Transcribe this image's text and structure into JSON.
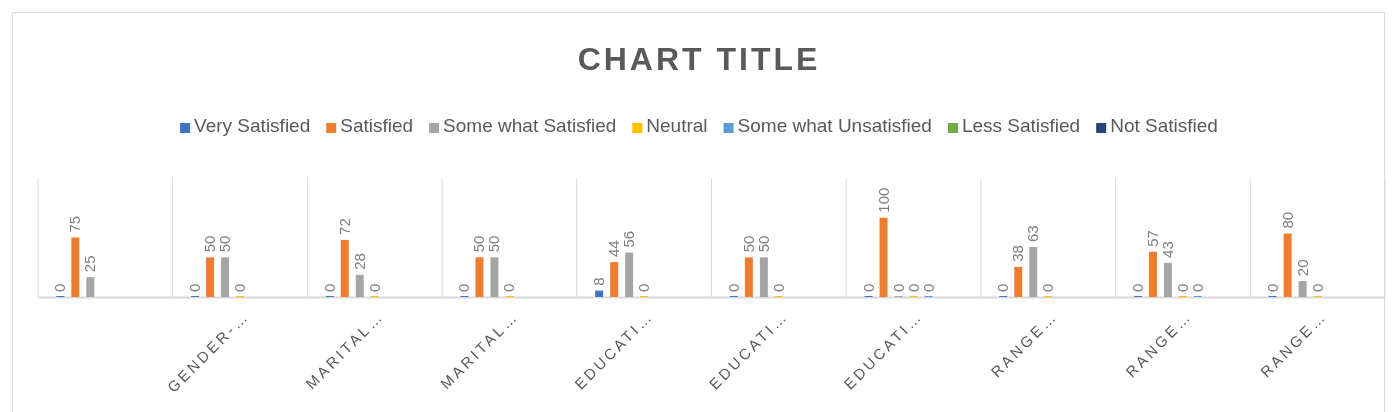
{
  "chart_data": {
    "type": "bar",
    "title": "CHART TITLE",
    "categories": [
      null,
      "GENDER-…",
      "MARITAL…",
      "MARITAL…",
      "EDUCATI…",
      "EDUCATI…",
      "EDUCATI…",
      "RANGE…",
      "RANGE…",
      "RANGE…"
    ],
    "series": [
      {
        "name": "Very Satisfied",
        "color": "#4472c4",
        "values": [
          0,
          0,
          0,
          0,
          8,
          0,
          0,
          0,
          0,
          0
        ]
      },
      {
        "name": "Satisfied",
        "color": "#ed7d31",
        "values": [
          75,
          50,
          72,
          50,
          44,
          50,
          100,
          38,
          57,
          80
        ]
      },
      {
        "name": "Some what Satisfied",
        "color": "#a5a5a5",
        "values": [
          25,
          50,
          28,
          50,
          56,
          50,
          0,
          63,
          43,
          20
        ]
      },
      {
        "name": "Neutral",
        "color": "#ffc000",
        "values": [
          null,
          0,
          0,
          0,
          0,
          0,
          0,
          0,
          0,
          0
        ]
      },
      {
        "name": "Some what Unsatisfied",
        "color": "#5b9bd5",
        "values": [
          null,
          null,
          null,
          null,
          null,
          null,
          0,
          null,
          0,
          null
        ]
      },
      {
        "name": "Less Satisfied",
        "color": "#70ad47",
        "values": [
          null,
          null,
          null,
          null,
          null,
          null,
          null,
          null,
          null,
          null
        ]
      },
      {
        "name": "Not Satisfied",
        "color": "#264478",
        "values": [
          null,
          null,
          null,
          null,
          null,
          null,
          null,
          null,
          null,
          null
        ]
      }
    ],
    "ylim": [
      0,
      150
    ],
    "tick_labels": "x",
    "grid": "x",
    "legend": "top",
    "data_labels": true
  }
}
